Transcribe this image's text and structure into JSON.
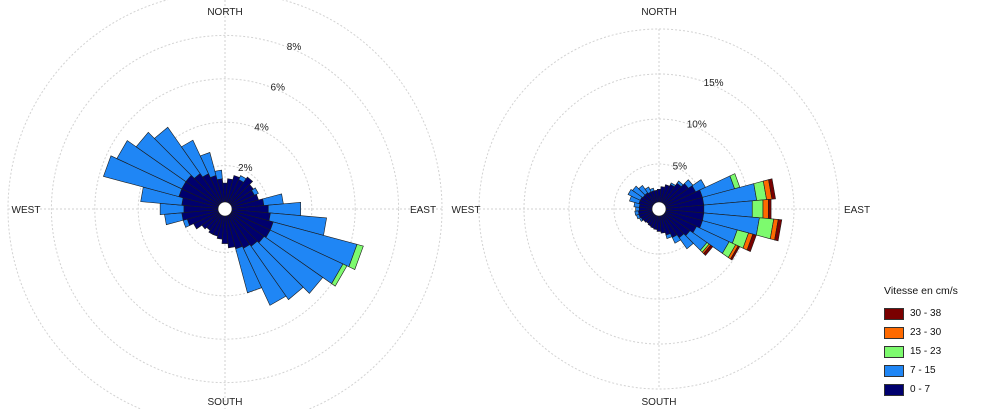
{
  "chart_data": [
    {
      "type": "windrose",
      "directions": {
        "north": "NORTH",
        "east": "EAST",
        "south": "SOUTH",
        "west": "WEST"
      },
      "ring_values": [
        2,
        4,
        6,
        8,
        10
      ],
      "ring_labels": [
        "2%",
        "4%",
        "6%",
        "8%",
        ""
      ],
      "unit": "%",
      "bins_deg": 10,
      "bins": [
        {
          "dir": 0,
          "values": [
            1.2,
            0.0,
            0.0,
            0.0,
            0.0
          ]
        },
        {
          "dir": 10,
          "values": [
            1.4,
            0.0,
            0.0,
            0.0,
            0.0
          ]
        },
        {
          "dir": 20,
          "values": [
            1.6,
            0.0,
            0.0,
            0.0,
            0.0
          ]
        },
        {
          "dir": 30,
          "values": [
            1.5,
            0.2,
            0.0,
            0.0,
            0.0
          ]
        },
        {
          "dir": 40,
          "values": [
            1.8,
            0.0,
            0.0,
            0.0,
            0.0
          ]
        },
        {
          "dir": 50,
          "values": [
            1.6,
            0.0,
            0.0,
            0.0,
            0.0
          ]
        },
        {
          "dir": 60,
          "values": [
            1.5,
            0.2,
            0.0,
            0.0,
            0.0
          ]
        },
        {
          "dir": 70,
          "values": [
            1.6,
            0.0,
            0.0,
            0.0,
            0.0
          ]
        },
        {
          "dir": 80,
          "values": [
            1.8,
            0.9,
            0.0,
            0.0,
            0.0
          ]
        },
        {
          "dir": 90,
          "values": [
            2.0,
            1.5,
            0.0,
            0.0,
            0.0
          ]
        },
        {
          "dir": 100,
          "values": [
            2.1,
            2.6,
            0.0,
            0.0,
            0.0
          ]
        },
        {
          "dir": 110,
          "values": [
            2.3,
            4.0,
            0.3,
            0.0,
            0.0
          ]
        },
        {
          "dir": 120,
          "values": [
            2.3,
            3.7,
            0.2,
            0.0,
            0.0
          ]
        },
        {
          "dir": 130,
          "values": [
            2.2,
            3.3,
            0.0,
            0.0,
            0.0
          ]
        },
        {
          "dir": 140,
          "values": [
            2.1,
            3.0,
            0.0,
            0.0,
            0.0
          ]
        },
        {
          "dir": 150,
          "values": [
            2.0,
            2.9,
            0.0,
            0.0,
            0.0
          ]
        },
        {
          "dir": 160,
          "values": [
            1.9,
            2.1,
            0.0,
            0.0,
            0.0
          ]
        },
        {
          "dir": 170,
          "values": [
            1.8,
            0.0,
            0.0,
            0.0,
            0.0
          ]
        },
        {
          "dir": 180,
          "values": [
            1.6,
            0.0,
            0.0,
            0.0,
            0.0
          ]
        },
        {
          "dir": 190,
          "values": [
            1.4,
            0.0,
            0.0,
            0.0,
            0.0
          ]
        },
        {
          "dir": 200,
          "values": [
            1.3,
            0.0,
            0.0,
            0.0,
            0.0
          ]
        },
        {
          "dir": 210,
          "values": [
            1.3,
            0.0,
            0.0,
            0.0,
            0.0
          ]
        },
        {
          "dir": 220,
          "values": [
            1.2,
            0.0,
            0.0,
            0.0,
            0.0
          ]
        },
        {
          "dir": 230,
          "values": [
            1.3,
            0.0,
            0.0,
            0.0,
            0.0
          ]
        },
        {
          "dir": 240,
          "values": [
            1.6,
            0.0,
            0.0,
            0.0,
            0.0
          ]
        },
        {
          "dir": 250,
          "values": [
            1.8,
            0.2,
            0.0,
            0.0,
            0.0
          ]
        },
        {
          "dir": 260,
          "values": [
            2.0,
            0.8,
            0.0,
            0.0,
            0.0
          ]
        },
        {
          "dir": 270,
          "values": [
            1.9,
            1.1,
            0.0,
            0.0,
            0.0
          ]
        },
        {
          "dir": 280,
          "values": [
            2.0,
            1.9,
            0.0,
            0.0,
            0.0
          ]
        },
        {
          "dir": 290,
          "values": [
            2.2,
            3.6,
            0.0,
            0.0,
            0.0
          ]
        },
        {
          "dir": 300,
          "values": [
            2.2,
            3.3,
            0.0,
            0.0,
            0.0
          ]
        },
        {
          "dir": 310,
          "values": [
            2.2,
            2.8,
            0.0,
            0.0,
            0.0
          ]
        },
        {
          "dir": 320,
          "values": [
            2.0,
            2.6,
            0.0,
            0.0,
            0.0
          ]
        },
        {
          "dir": 330,
          "values": [
            1.8,
            1.7,
            0.0,
            0.0,
            0.0
          ]
        },
        {
          "dir": 340,
          "values": [
            1.6,
            1.1,
            0.0,
            0.0,
            0.0
          ]
        },
        {
          "dir": 350,
          "values": [
            1.4,
            0.4,
            0.0,
            0.0,
            0.0
          ]
        }
      ]
    },
    {
      "type": "windrose",
      "directions": {
        "north": "NORTH",
        "east": "EAST",
        "south": "SOUTH",
        "west": "WEST"
      },
      "ring_values": [
        5,
        10,
        15,
        20
      ],
      "ring_labels": [
        "5%",
        "10%",
        "15%",
        ""
      ],
      "unit": "%",
      "bins_deg": 10,
      "bins": [
        {
          "dir": 0,
          "values": [
            2.2,
            0.0,
            0.0,
            0.0,
            0.0
          ]
        },
        {
          "dir": 10,
          "values": [
            2.5,
            0.0,
            0.0,
            0.0,
            0.0
          ]
        },
        {
          "dir": 20,
          "values": [
            2.8,
            0.0,
            0.0,
            0.0,
            0.0
          ]
        },
        {
          "dir": 30,
          "values": [
            3.0,
            0.2,
            0.0,
            0.0,
            0.0
          ]
        },
        {
          "dir": 40,
          "values": [
            3.5,
            0.3,
            0.0,
            0.0,
            0.0
          ]
        },
        {
          "dir": 50,
          "values": [
            4.0,
            0.6,
            0.0,
            0.0,
            0.0
          ]
        },
        {
          "dir": 60,
          "values": [
            4.5,
            1.2,
            0.0,
            0.0,
            0.0
          ]
        },
        {
          "dir": 70,
          "values": [
            5.0,
            3.7,
            0.6,
            0.0,
            0.0
          ]
        },
        {
          "dir": 80,
          "values": [
            5.0,
            5.9,
            1.1,
            0.6,
            0.4
          ]
        },
        {
          "dir": 90,
          "values": [
            5.0,
            5.4,
            1.2,
            0.6,
            0.3
          ]
        },
        {
          "dir": 100,
          "values": [
            5.0,
            6.2,
            1.6,
            0.5,
            0.4
          ]
        },
        {
          "dir": 110,
          "values": [
            5.0,
            4.0,
            1.3,
            0.5,
            0.4
          ]
        },
        {
          "dir": 120,
          "values": [
            4.6,
            4.0,
            0.8,
            0.3,
            0.2
          ]
        },
        {
          "dir": 130,
          "values": [
            4.2,
            2.3,
            0.3,
            0.2,
            0.3
          ]
        },
        {
          "dir": 140,
          "values": [
            3.9,
            1.5,
            0.0,
            0.0,
            0.0
          ]
        },
        {
          "dir": 150,
          "values": [
            3.5,
            0.7,
            0.0,
            0.0,
            0.0
          ]
        },
        {
          "dir": 160,
          "values": [
            3.0,
            0.4,
            0.0,
            0.0,
            0.0
          ]
        },
        {
          "dir": 170,
          "values": [
            2.7,
            0.0,
            0.0,
            0.0,
            0.0
          ]
        },
        {
          "dir": 180,
          "values": [
            2.5,
            0.0,
            0.0,
            0.0,
            0.0
          ]
        },
        {
          "dir": 190,
          "values": [
            2.3,
            0.0,
            0.0,
            0.0,
            0.0
          ]
        },
        {
          "dir": 200,
          "values": [
            2.2,
            0.0,
            0.0,
            0.0,
            0.0
          ]
        },
        {
          "dir": 210,
          "values": [
            2.1,
            0.0,
            0.0,
            0.0,
            0.0
          ]
        },
        {
          "dir": 220,
          "values": [
            2.0,
            0.0,
            0.0,
            0.0,
            0.0
          ]
        },
        {
          "dir": 230,
          "values": [
            2.1,
            0.0,
            0.0,
            0.0,
            0.0
          ]
        },
        {
          "dir": 240,
          "values": [
            2.2,
            0.2,
            0.0,
            0.0,
            0.0
          ]
        },
        {
          "dir": 250,
          "values": [
            2.3,
            0.3,
            0.0,
            0.0,
            0.0
          ]
        },
        {
          "dir": 260,
          "values": [
            2.3,
            0.4,
            0.0,
            0.0,
            0.0
          ]
        },
        {
          "dir": 270,
          "values": [
            2.2,
            0.4,
            0.0,
            0.0,
            0.0
          ]
        },
        {
          "dir": 280,
          "values": [
            2.2,
            0.6,
            0.0,
            0.0,
            0.0
          ]
        },
        {
          "dir": 290,
          "values": [
            2.3,
            1.1,
            0.0,
            0.0,
            0.0
          ]
        },
        {
          "dir": 300,
          "values": [
            2.3,
            1.5,
            0.0,
            0.0,
            0.0
          ]
        },
        {
          "dir": 310,
          "values": [
            2.2,
            1.4,
            0.0,
            0.0,
            0.0
          ]
        },
        {
          "dir": 320,
          "values": [
            2.2,
            1.0,
            0.0,
            0.0,
            0.0
          ]
        },
        {
          "dir": 330,
          "values": [
            2.1,
            0.6,
            0.0,
            0.0,
            0.0
          ]
        },
        {
          "dir": 340,
          "values": [
            2.1,
            0.3,
            0.0,
            0.0,
            0.0
          ]
        },
        {
          "dir": 350,
          "values": [
            2.1,
            0.0,
            0.0,
            0.0,
            0.0
          ]
        }
      ]
    }
  ],
  "legend": {
    "title": "Vitesse en cm/s",
    "items": [
      {
        "label": "30 - 38",
        "color": "#7a0000"
      },
      {
        "label": "23 - 30",
        "color": "#ff6a00"
      },
      {
        "label": "15 - 23",
        "color": "#7dfa6e"
      },
      {
        "label": "7 - 15",
        "color": "#1f86f5"
      },
      {
        "label": "0 - 7",
        "color": "#00006e"
      }
    ]
  },
  "speed_bins": [
    "0 - 7",
    "7 - 15",
    "15 - 23",
    "23 - 30",
    "30 - 38"
  ],
  "bin_colors": [
    "#00006e",
    "#1f86f5",
    "#7dfa6e",
    "#ff6a00",
    "#7a0000"
  ]
}
